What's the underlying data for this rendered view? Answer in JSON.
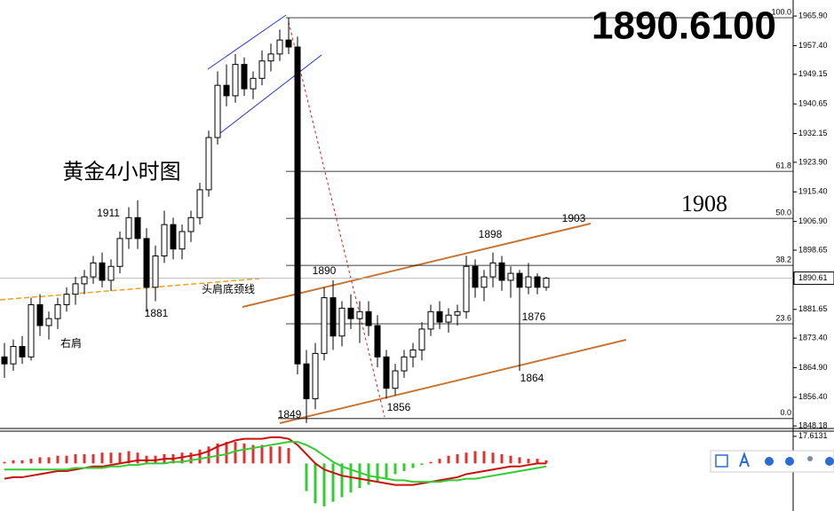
{
  "chart_data": [
    {
      "type": "candlestick",
      "title": "黄金4小时图",
      "price_label": "1890.6100",
      "price_label_color": "#ff0000",
      "ylim": [
        1847.7,
        1970.5
      ],
      "yticks": [
        {
          "value": 1965.9,
          "label": "1965.90"
        },
        {
          "value": 1957.4,
          "label": "1957.40"
        },
        1949.15,
        1940.65,
        1932.15,
        {
          "value": 1923.9,
          "label": "1923.90"
        },
        {
          "value": 1915.4,
          "label": "1915.40"
        },
        {
          "value": 1906.9,
          "label": "1906.90"
        },
        1898.65,
        1881.65,
        {
          "value": 1873.4,
          "label": "1873.40"
        },
        {
          "value": 1864.9,
          "label": "1864.90"
        },
        {
          "value": 1856.4,
          "label": "1856.40"
        },
        1848.18
      ],
      "current_price": 1890.61,
      "fib_levels": [
        {
          "value": 1965.4,
          "label": "100.0"
        },
        {
          "value": 1921.3,
          "label": "61.8"
        },
        {
          "value": 1907.8,
          "label": "50.0"
        },
        {
          "value": 1894.3,
          "label": "38.2"
        },
        {
          "value": 1877.5,
          "label": "23.6"
        },
        {
          "value": 1850.3,
          "label": "0.0"
        }
      ],
      "open": [
        1868,
        1866,
        1871,
        1868,
        1883,
        1877,
        1879,
        1883,
        1886,
        1889,
        1891,
        1895,
        1890,
        1894,
        1902,
        1908,
        1902,
        1888,
        1897,
        1906,
        1899,
        1904,
        1908,
        1916,
        1931,
        1946,
        1943,
        1952,
        1945,
        1948,
        1953,
        1955,
        1959,
        1957,
        1866,
        1856,
        1869,
        1885,
        1874,
        1882,
        1879,
        1881,
        1877,
        1868,
        1859,
        1864,
        1868,
        1870,
        1876,
        1881,
        1878,
        1880,
        1881,
        1894,
        1888,
        1891,
        1895,
        1890,
        1892,
        1888,
        1891,
        1888
      ],
      "high": [
        1872,
        1873,
        1874,
        1885,
        1886,
        1881,
        1885,
        1888,
        1891,
        1893,
        1897,
        1898,
        1896,
        1904,
        1911,
        1913,
        1905,
        1900,
        1910,
        1908,
        1906,
        1910,
        1918,
        1933,
        1950,
        1952,
        1955,
        1954,
        1950,
        1956,
        1958,
        1962,
        1965.4,
        1960,
        1870,
        1872,
        1888,
        1890,
        1884,
        1886,
        1884,
        1884,
        1880,
        1870,
        1866,
        1870,
        1872,
        1878,
        1883,
        1884,
        1882,
        1883,
        1897,
        1896,
        1893,
        1898,
        1897,
        1894,
        1893,
        1895,
        1892,
        1891
      ],
      "low": [
        1862,
        1864,
        1866,
        1867,
        1874,
        1873,
        1876,
        1881,
        1883,
        1886,
        1889,
        1888,
        1887,
        1892,
        1899,
        1899,
        1881,
        1884,
        1895,
        1896,
        1896,
        1901,
        1906,
        1914,
        1929,
        1940,
        1941,
        1943,
        1942,
        1946,
        1950,
        1953,
        1955,
        1863,
        1849,
        1853,
        1867,
        1870,
        1871,
        1876,
        1872,
        1874,
        1865,
        1856,
        1857,
        1862,
        1865,
        1867,
        1874,
        1876,
        1875,
        1877,
        1879,
        1885,
        1884,
        1888,
        1887,
        1885,
        1864,
        1886,
        1886,
        1887
      ],
      "close": [
        1866,
        1871,
        1868,
        1883,
        1877,
        1879,
        1883,
        1886,
        1889,
        1891,
        1895,
        1890,
        1894,
        1902,
        1908,
        1902,
        1888,
        1897,
        1906,
        1899,
        1904,
        1908,
        1916,
        1931,
        1946,
        1943,
        1952,
        1945,
        1948,
        1953,
        1955,
        1959,
        1957,
        1866,
        1856,
        1869,
        1885,
        1874,
        1882,
        1879,
        1881,
        1877,
        1868,
        1859,
        1864,
        1868,
        1870,
        1876,
        1881,
        1878,
        1880,
        1881,
        1894,
        1888,
        1891,
        1895,
        1890,
        1892,
        1888,
        1891,
        1888,
        1890.61
      ],
      "annotations": [
        {
          "text": "1911",
          "color": "#e02020"
        },
        {
          "text": "1881",
          "color": "#e02020"
        },
        {
          "text": "右肩",
          "color": "#000000"
        },
        {
          "text": "头肩底颈线",
          "color": "#f0a020"
        },
        {
          "text": "1890",
          "color": "#000000"
        },
        {
          "text": "1898",
          "color": "#000000"
        },
        {
          "text": "1903",
          "color": "#000000"
        },
        {
          "text": "1908",
          "color": "#000000"
        },
        {
          "text": "1849",
          "color": "#000000"
        },
        {
          "text": "1856",
          "color": "#000000"
        },
        {
          "text": "1864",
          "color": "#000000"
        },
        {
          "text": "1876",
          "color": "#e02020"
        }
      ]
    },
    {
      "type": "macd",
      "ylim": [
        -31,
        21
      ],
      "yticks": [
        17.6131
      ],
      "series": [
        {
          "color": "#e03030",
          "values": [
            1,
            2,
            2,
            3,
            4,
            4,
            5,
            5,
            6,
            6,
            6,
            7,
            7,
            7,
            8,
            7,
            5,
            5,
            6,
            6,
            7,
            7,
            9,
            11,
            13,
            14,
            14,
            13,
            12,
            12,
            11,
            11,
            10,
            0,
            -18,
            -26,
            -28,
            -25,
            -22,
            -19,
            -16,
            -14,
            -12,
            -10,
            -7,
            -5,
            -3,
            -1,
            1,
            3,
            5,
            6,
            7,
            8,
            8,
            7,
            6,
            5,
            4,
            3,
            3,
            2
          ]
        },
        {
          "color": "#cc1010",
          "values": [
            -10,
            -9,
            -9,
            -8,
            -7,
            -6,
            -5,
            -5,
            -4,
            -3,
            -2,
            -2,
            -1,
            0,
            1,
            2,
            2,
            2,
            3,
            3,
            4,
            5,
            6,
            8,
            11,
            13,
            15,
            16,
            16,
            16,
            17,
            17,
            16,
            12,
            6,
            0,
            -4,
            -6,
            -8,
            -9,
            -10,
            -11,
            -12,
            -13,
            -14,
            -14,
            -14,
            -13,
            -12,
            -11,
            -10,
            -9,
            -7,
            -6,
            -5,
            -4,
            -3,
            -2,
            -2,
            -1,
            0,
            0
          ]
        },
        {
          "color": "#33cc33",
          "values": [
            -4,
            -4,
            -4,
            -4,
            -4,
            -4,
            -4,
            -4,
            -3,
            -3,
            -3,
            -3,
            -2,
            -2,
            -1,
            -1,
            0,
            0,
            0,
            1,
            1,
            2,
            3,
            4,
            5,
            6,
            8,
            9,
            10,
            11,
            12,
            13,
            14,
            14,
            12,
            9,
            5,
            1,
            -2,
            -4,
            -6,
            -8,
            -9,
            -10,
            -11,
            -11,
            -12,
            -12,
            -12,
            -12,
            -11,
            -11,
            -10,
            -10,
            -9,
            -8,
            -7,
            -6,
            -5,
            -4,
            -3,
            -2
          ]
        }
      ]
    }
  ]
}
